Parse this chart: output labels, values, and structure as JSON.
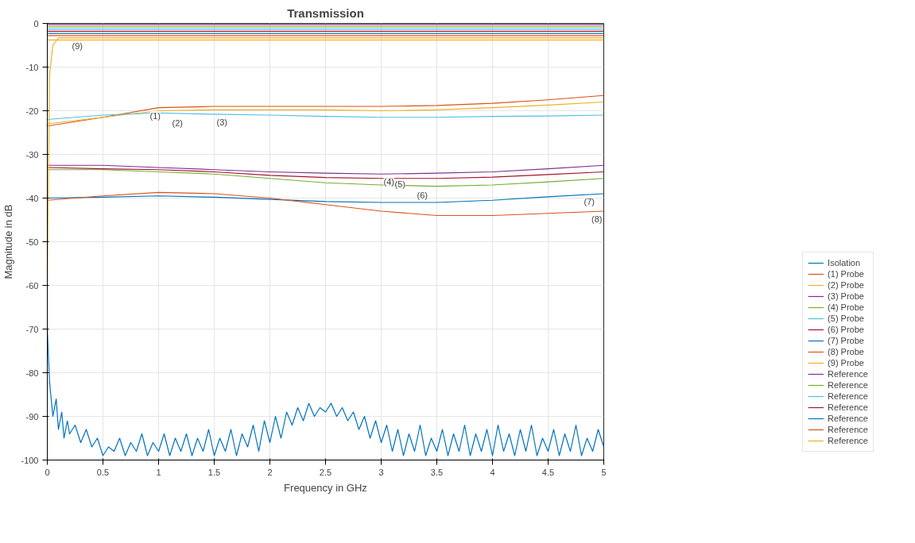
{
  "chart_data": {
    "type": "line",
    "title": "Transmission",
    "xlabel": "Frequency in GHz",
    "ylabel": "Magnitude in dB",
    "xlim": [
      0,
      5
    ],
    "xticks": [
      0,
      0.5,
      1,
      1.5,
      2,
      2.5,
      3,
      3.5,
      4,
      4.5,
      5
    ],
    "ylim": [
      -100,
      0
    ],
    "yticks": [
      0,
      -10,
      -20,
      -30,
      -40,
      -50,
      -60,
      -70,
      -80,
      -90,
      -100
    ],
    "grid": true,
    "legend": "bottom right",
    "line_style": "solid",
    "marker": "none",
    "x": [
      0,
      0.5,
      1,
      1.5,
      2,
      2.5,
      3,
      3.5,
      4,
      4.5,
      5
    ],
    "series": [
      {
        "name": "Isolation",
        "color": "#0072bd",
        "x": [
          0,
          0.02,
          0.05,
          0.08,
          0.1,
          0.13,
          0.15,
          0.18,
          0.2,
          0.25,
          0.3,
          0.35,
          0.4,
          0.45,
          0.5,
          0.55,
          0.6,
          0.65,
          0.7,
          0.75,
          0.8,
          0.85,
          0.9,
          0.95,
          1,
          1.05,
          1.1,
          1.15,
          1.2,
          1.25,
          1.3,
          1.35,
          1.4,
          1.45,
          1.5,
          1.55,
          1.6,
          1.65,
          1.7,
          1.75,
          1.8,
          1.85,
          1.9,
          1.95,
          2,
          2.05,
          2.1,
          2.15,
          2.2,
          2.25,
          2.3,
          2.35,
          2.4,
          2.45,
          2.5,
          2.55,
          2.6,
          2.65,
          2.7,
          2.75,
          2.8,
          2.85,
          2.9,
          2.95,
          3,
          3.05,
          3.1,
          3.15,
          3.2,
          3.25,
          3.3,
          3.35,
          3.4,
          3.45,
          3.5,
          3.55,
          3.6,
          3.65,
          3.7,
          3.75,
          3.8,
          3.85,
          3.9,
          3.95,
          4,
          4.05,
          4.1,
          4.15,
          4.2,
          4.25,
          4.3,
          4.35,
          4.4,
          4.45,
          4.5,
          4.55,
          4.6,
          4.65,
          4.7,
          4.75,
          4.8,
          4.85,
          4.9,
          4.95,
          5
        ],
        "values": [
          -70,
          -82,
          -90,
          -86,
          -93,
          -89,
          -95,
          -91,
          -94,
          -92,
          -96,
          -93,
          -97,
          -95,
          -99,
          -97,
          -98,
          -95,
          -99,
          -96,
          -98,
          -94,
          -99,
          -96,
          -98,
          -94,
          -99,
          -95,
          -98,
          -94,
          -99,
          -95,
          -98,
          -93,
          -99,
          -95,
          -98,
          -93,
          -99,
          -94,
          -97,
          -92,
          -98,
          -91,
          -96,
          -90,
          -95,
          -89,
          -92,
          -88,
          -91,
          -87,
          -90,
          -88,
          -89,
          -87,
          -90,
          -88,
          -91,
          -89,
          -93,
          -90,
          -95,
          -91,
          -96,
          -92,
          -98,
          -93,
          -99,
          -94,
          -98,
          -92,
          -99,
          -95,
          -98,
          -93,
          -99,
          -94,
          -98,
          -92,
          -99,
          -94,
          -98,
          -93,
          -99,
          -92,
          -98,
          -94,
          -99,
          -93,
          -98,
          -92,
          -99,
          -95,
          -98,
          -93,
          -99,
          -94,
          -98,
          -92,
          -99,
          -95,
          -98,
          -93,
          -97
        ]
      },
      {
        "name": "(1) Probe",
        "color": "#d95319",
        "values": [
          -23.5,
          -21.5,
          -19.3,
          -19,
          -19,
          -19,
          -19,
          -18.8,
          -18.3,
          -17.5,
          -16.5
        ]
      },
      {
        "name": "(2) Probe",
        "color": "#edb120",
        "values": [
          -23,
          -21.5,
          -20,
          -19.8,
          -19.8,
          -19.8,
          -20,
          -19.8,
          -19.3,
          -18.7,
          -18
        ]
      },
      {
        "name": "(3) Probe",
        "color": "#7e2f8e",
        "values": [
          -32.5,
          -32.5,
          -33,
          -33.5,
          -34,
          -34.3,
          -34.5,
          -34.3,
          -34,
          -33.3,
          -32.5
        ]
      },
      {
        "name": "(4) Probe",
        "color": "#77ac30",
        "values": [
          -33.5,
          -33.5,
          -34,
          -34.5,
          -35.5,
          -36.5,
          -37,
          -37.3,
          -37,
          -36.3,
          -35.5
        ]
      },
      {
        "name": "(5) Probe",
        "color": "#4dbeee",
        "values": [
          -22,
          -21,
          -20.5,
          -20.8,
          -21,
          -21.3,
          -21.5,
          -21.5,
          -21.3,
          -21.2,
          -21
        ]
      },
      {
        "name": "(6) Probe",
        "color": "#a2142f",
        "values": [
          -33,
          -33.3,
          -33.5,
          -34,
          -34.8,
          -35.3,
          -35.5,
          -35.5,
          -35.2,
          -34.6,
          -34
        ]
      },
      {
        "name": "(7) Probe",
        "color": "#0072bd",
        "values": [
          -40,
          -39.8,
          -39.5,
          -39.8,
          -40.3,
          -40.8,
          -41,
          -41,
          -40.5,
          -39.7,
          -39
        ]
      },
      {
        "name": "(8) Probe",
        "color": "#d95319",
        "values": [
          -40.5,
          -39.5,
          -38.7,
          -39,
          -40,
          -41.5,
          -43,
          -44,
          -44,
          -43.5,
          -43
        ]
      },
      {
        "name": "(9) Probe",
        "color": "#edb120",
        "x": [
          0,
          0.02,
          0.05,
          0.1,
          0.5,
          1,
          1.5,
          2,
          2.5,
          3,
          3.5,
          4,
          4.5,
          5
        ],
        "values": [
          -60,
          -12,
          -5,
          -3.3,
          -3.3,
          -3.3,
          -3.3,
          -3.3,
          -3.3,
          -3.3,
          -3.3,
          -3.3,
          -3.3,
          -3.3
        ]
      },
      {
        "name": "Reference",
        "color": "#7e2f8e",
        "values": [
          -0.3,
          -0.3,
          -0.3,
          -0.3,
          -0.3,
          -0.3,
          -0.3,
          -0.3,
          -0.3,
          -0.3,
          -0.3
        ]
      },
      {
        "name": "Reference",
        "color": "#77ac30",
        "values": [
          -0.8,
          -0.8,
          -0.8,
          -0.8,
          -0.8,
          -0.8,
          -0.8,
          -0.8,
          -0.8,
          -0.8,
          -0.8
        ]
      },
      {
        "name": "Reference",
        "color": "#4dbeee",
        "values": [
          -1.3,
          -1.3,
          -1.3,
          -1.3,
          -1.3,
          -1.3,
          -1.3,
          -1.3,
          -1.3,
          -1.3,
          -1.3
        ]
      },
      {
        "name": "Reference",
        "color": "#a2142f",
        "values": [
          -1.8,
          -1.8,
          -1.8,
          -1.8,
          -1.8,
          -1.8,
          -1.8,
          -1.8,
          -1.8,
          -1.8,
          -1.8
        ]
      },
      {
        "name": "Reference",
        "color": "#0072bd",
        "values": [
          -2.3,
          -2.3,
          -2.3,
          -2.3,
          -2.3,
          -2.3,
          -2.3,
          -2.3,
          -2.3,
          -2.3,
          -2.3
        ]
      },
      {
        "name": "Reference",
        "color": "#d95319",
        "values": [
          -2.8,
          -2.8,
          -2.8,
          -2.8,
          -2.8,
          -2.8,
          -2.8,
          -2.8,
          -2.8,
          -2.8,
          -2.8
        ]
      },
      {
        "name": "Reference",
        "color": "#edb120",
        "values": [
          -3.8,
          -3.8,
          -3.8,
          -3.8,
          -3.8,
          -3.8,
          -3.8,
          -3.8,
          -3.8,
          -3.8,
          -3.8
        ]
      }
    ],
    "annotations": [
      {
        "text": "(9)",
        "x": 0.2,
        "y": -3.3
      },
      {
        "text": "(1)",
        "x": 0.9,
        "y": -19.3
      },
      {
        "text": "(2)",
        "x": 1.1,
        "y": -21
      },
      {
        "text": "(3)",
        "x": 1.5,
        "y": -20.8
      },
      {
        "text": "(4)",
        "x": 3,
        "y": -34.5
      },
      {
        "text": "(5)",
        "x": 3.1,
        "y": -35
      },
      {
        "text": "(6)",
        "x": 3.3,
        "y": -37.5
      },
      {
        "text": "(7)",
        "x": 4.8,
        "y": -39
      },
      {
        "text": "(8)",
        "x": 5,
        "y": -43
      }
    ]
  }
}
